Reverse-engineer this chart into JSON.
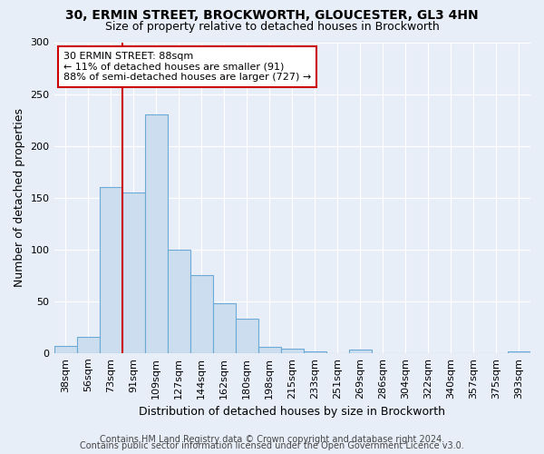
{
  "title": "30, ERMIN STREET, BROCKWORTH, GLOUCESTER, GL3 4HN",
  "subtitle": "Size of property relative to detached houses in Brockworth",
  "xlabel": "Distribution of detached houses by size in Brockworth",
  "ylabel": "Number of detached properties",
  "categories": [
    "38sqm",
    "56sqm",
    "73sqm",
    "91sqm",
    "109sqm",
    "127sqm",
    "144sqm",
    "162sqm",
    "180sqm",
    "198sqm",
    "215sqm",
    "233sqm",
    "251sqm",
    "269sqm",
    "286sqm",
    "304sqm",
    "322sqm",
    "340sqm",
    "357sqm",
    "375sqm",
    "393sqm"
  ],
  "values": [
    7,
    16,
    160,
    155,
    230,
    100,
    75,
    48,
    33,
    6,
    4,
    2,
    0,
    3,
    0,
    0,
    0,
    0,
    0,
    0,
    2
  ],
  "bar_color": "#ccddf0",
  "bar_edge_color": "#6aaad4",
  "vline_color": "#cc0000",
  "vline_pos": 3.0,
  "annotation_text": "30 ERMIN STREET: 88sqm\n← 11% of detached houses are smaller (91)\n88% of semi-detached houses are larger (727) →",
  "annotation_box_color": "#ffffff",
  "annotation_box_edgecolor": "#cc0000",
  "ylim": [
    0,
    300
  ],
  "yticks": [
    0,
    50,
    100,
    150,
    200,
    250,
    300
  ],
  "footer_line1": "Contains HM Land Registry data © Crown copyright and database right 2024.",
  "footer_line2": "Contains public sector information licensed under the Open Government Licence v3.0.",
  "title_fontsize": 10,
  "subtitle_fontsize": 9,
  "axis_label_fontsize": 9,
  "ylabel_fontsize": 9,
  "tick_fontsize": 8,
  "footer_fontsize": 7,
  "annotation_fontsize": 8,
  "background_color": "#e8eef8",
  "plot_bg_color": "#e8eef8",
  "grid_color": "#ffffff"
}
